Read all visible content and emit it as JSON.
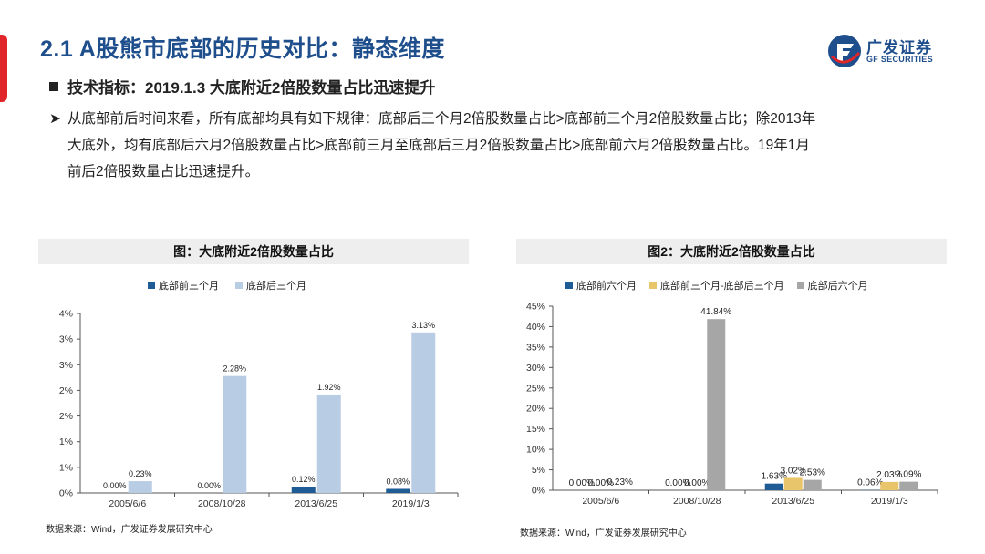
{
  "slide": {
    "title": "2.1 A股熊市底部的历史对比：静态维度",
    "bullet": "技术指标：2019.1.3 大底附近2倍股数量占比迅速提升",
    "para_line1": "从底部前后时间来看，所有底部均具有如下规律：底部后三个月2倍股数量占比>底部前三个月2倍股数量占比；除2013年",
    "para_line2": "大底外，均有底部后六月2倍股数量占比>底部前三月至底部后三月2倍股数量占比>底部前六月2倍股数量占比。19年1月",
    "para_line3": "前后2倍股数量占比迅速提升。"
  },
  "logo": {
    "cn": "广发证券",
    "en": "GF SECURITIES",
    "icon": "gf-logo-icon"
  },
  "colors": {
    "title": "#1f4e8c",
    "accent": "#e0262b"
  },
  "chart_data": [
    {
      "type": "bar",
      "title": "图：大底附近2倍股数量占比",
      "categories": [
        "2005/6/6",
        "2008/10/28",
        "2013/6/25",
        "2019/1/3"
      ],
      "series": [
        {
          "name": "底部前三个月",
          "values": [
            0.0,
            0.0,
            0.12,
            0.08
          ],
          "labels": [
            "0.00%",
            "0.00%",
            "0.12%",
            "0.08%"
          ],
          "color": "#1f5b95"
        },
        {
          "name": "底部后三个月",
          "values": [
            0.23,
            2.28,
            1.92,
            3.13
          ],
          "labels": [
            "0.23%",
            "2.28%",
            "1.92%",
            "3.13%"
          ],
          "color": "#b8cce4"
        }
      ],
      "yticks": [
        "0%",
        "1%",
        "1%",
        "2%",
        "2%",
        "3%",
        "3%",
        "4%"
      ],
      "ylim": [
        0,
        3.5
      ],
      "legend": "top",
      "source": "数据来源：Wind，广发证券发展研究中心"
    },
    {
      "type": "bar",
      "title": "图2：大底附近2倍股数量占比",
      "categories": [
        "2005/6/6",
        "2008/10/28",
        "2013/6/25",
        "2019/1/3"
      ],
      "series": [
        {
          "name": "底部前六个月",
          "values": [
            0.0,
            0.0,
            1.63,
            0.06
          ],
          "labels": [
            "0.00%",
            "0.00%",
            "1.63%",
            "0.06%"
          ],
          "color": "#1f5b95"
        },
        {
          "name": "底部前三个月-底部后三个月",
          "values": [
            0.0,
            0.0,
            3.02,
            2.03
          ],
          "labels": [
            "0.00%",
            "0.00%",
            "3.02%",
            "2.03%"
          ],
          "color": "#e8c56b"
        },
        {
          "name": "底部后六个月",
          "values": [
            0.23,
            41.84,
            2.53,
            2.09
          ],
          "labels": [
            "0.23%",
            "41.84%",
            "2.53%",
            "2.09%"
          ],
          "color": "#a6a6a6"
        }
      ],
      "yticks": [
        "0%",
        "5%",
        "10%",
        "15%",
        "20%",
        "25%",
        "30%",
        "35%",
        "40%",
        "45%"
      ],
      "ylim": [
        0,
        45
      ],
      "legend": "top",
      "source": "数据来源：Wind，广发证券发展研究中心"
    }
  ]
}
